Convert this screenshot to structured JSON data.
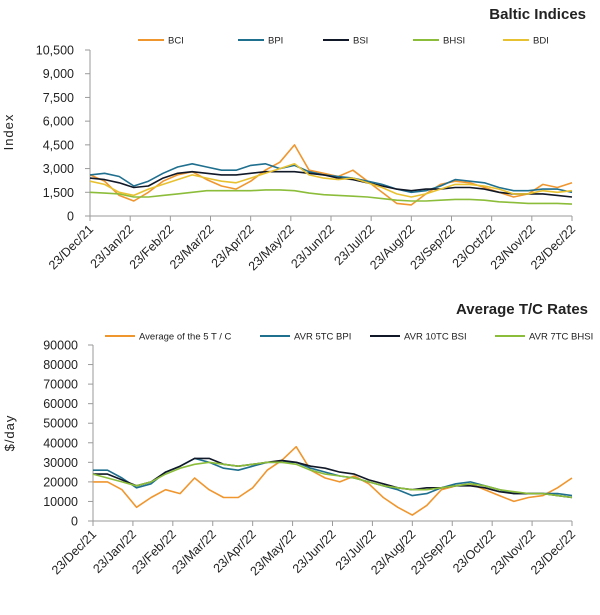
{
  "chart_data": [
    {
      "type": "line",
      "title": "Baltic Indices",
      "ylabel": "Index",
      "ylim": [
        0,
        10500
      ],
      "yticks": [
        "10,500",
        "9,000",
        "7,500",
        "6,000",
        "4,500",
        "3,000",
        "1,500",
        "0"
      ],
      "ytick_values": [
        10500,
        9000,
        7500,
        6000,
        4500,
        3000,
        1500,
        0
      ],
      "xticks": [
        "23/Dec/21",
        "23/Jan/22",
        "23/Feb/22",
        "23/Mar/22",
        "23/Apr/22",
        "23/May/22",
        "23/Jun/22",
        "23/Jul/22",
        "23/Aug/22",
        "23/Sep/22",
        "23/Oct/22",
        "23/Nov/22",
        "23/Dec/22"
      ],
      "legend_position": "top",
      "series": [
        {
          "name": "BCI",
          "color": "#f0962e",
          "values": [
            2600,
            2200,
            1300,
            950,
            1500,
            2200,
            2600,
            2800,
            2300,
            1900,
            1700,
            2200,
            2900,
            3400,
            4500,
            2900,
            2700,
            2500,
            2900,
            2200,
            1500,
            800,
            700,
            1400,
            2000,
            2200,
            2100,
            1800,
            1500,
            1200,
            1400,
            2000,
            1800,
            2100
          ]
        },
        {
          "name": "BPI",
          "color": "#1f6f8f",
          "values": [
            2600,
            2700,
            2500,
            1900,
            2200,
            2700,
            3100,
            3300,
            3100,
            2900,
            2900,
            3200,
            3300,
            3000,
            3200,
            2800,
            2600,
            2500,
            2400,
            2200,
            2000,
            1700,
            1500,
            1600,
            1900,
            2300,
            2200,
            2100,
            1800,
            1600,
            1600,
            1700,
            1700,
            1500
          ]
        },
        {
          "name": "BSI",
          "color": "#111827",
          "values": [
            2400,
            2300,
            2100,
            1800,
            1900,
            2400,
            2700,
            2800,
            2700,
            2600,
            2600,
            2700,
            2800,
            2800,
            2800,
            2700,
            2600,
            2400,
            2300,
            2100,
            1900,
            1700,
            1600,
            1700,
            1700,
            1800,
            1800,
            1700,
            1500,
            1400,
            1400,
            1400,
            1300,
            1200
          ]
        },
        {
          "name": "BHSI",
          "color": "#8cbd3a",
          "values": [
            1500,
            1450,
            1400,
            1200,
            1200,
            1300,
            1400,
            1500,
            1600,
            1600,
            1600,
            1600,
            1650,
            1650,
            1600,
            1450,
            1350,
            1300,
            1250,
            1200,
            1100,
            1000,
            950,
            950,
            1000,
            1050,
            1050,
            1000,
            900,
            850,
            800,
            800,
            800,
            750
          ]
        },
        {
          "name": "BDI",
          "color": "#e8c130",
          "values": [
            2200,
            2000,
            1500,
            1300,
            1700,
            2000,
            2300,
            2600,
            2400,
            2200,
            2100,
            2400,
            2700,
            3000,
            3300,
            2600,
            2400,
            2300,
            2400,
            2100,
            1800,
            1400,
            1200,
            1400,
            1700,
            2000,
            2000,
            1900,
            1700,
            1400,
            1400,
            1600,
            1500,
            1600
          ]
        }
      ]
    },
    {
      "type": "line",
      "title": "Average T/C Rates",
      "ylabel": "$/day",
      "ylim": [
        0,
        90000
      ],
      "yticks": [
        "90000",
        "80000",
        "70000",
        "60000",
        "50000",
        "40000",
        "30000",
        "20000",
        "10000",
        "0"
      ],
      "ytick_values": [
        90000,
        80000,
        70000,
        60000,
        50000,
        40000,
        30000,
        20000,
        10000,
        0
      ],
      "xticks": [
        "23/Dec/21",
        "23/Jan/22",
        "23/Feb/22",
        "23/Mar/22",
        "23/Apr/22",
        "23/May/22",
        "23/Jun/22",
        "23/Jul/22",
        "23/Aug/22",
        "23/Sep/22",
        "23/Oct/22",
        "23/Nov/22",
        "23/Dec/22"
      ],
      "legend_position": "top",
      "series": [
        {
          "name": "Average of the 5 T / C",
          "color": "#f0962e",
          "values": [
            20000,
            20000,
            16000,
            7000,
            12000,
            16000,
            14000,
            22000,
            16000,
            12000,
            12000,
            17000,
            26000,
            31000,
            38000,
            26000,
            22000,
            20000,
            23000,
            19000,
            12000,
            7000,
            3000,
            8000,
            16000,
            18000,
            19000,
            16000,
            13000,
            10000,
            12000,
            13000,
            17000,
            22000
          ]
        },
        {
          "name": "AVR 5TC BPI",
          "color": "#1f6f8f",
          "values": [
            26000,
            26000,
            22000,
            17000,
            19000,
            25000,
            28000,
            32000,
            30000,
            27000,
            26000,
            28000,
            30000,
            30000,
            30000,
            27000,
            25000,
            23000,
            22000,
            20000,
            18000,
            16000,
            13000,
            14000,
            17000,
            19000,
            20000,
            18000,
            16000,
            14000,
            14000,
            14000,
            14000,
            13000
          ]
        },
        {
          "name": "AVR 10TC BSI",
          "color": "#111827",
          "values": [
            24000,
            24000,
            21000,
            18000,
            20000,
            25000,
            28000,
            32000,
            32000,
            29000,
            28000,
            29000,
            30000,
            31000,
            30000,
            28000,
            27000,
            25000,
            24000,
            21000,
            19000,
            17000,
            16000,
            17000,
            17000,
            18000,
            18000,
            17000,
            15000,
            14000,
            14000,
            14000,
            13000,
            12000
          ]
        },
        {
          "name": "AVR 7TC BHSI",
          "color": "#8cbd3a",
          "values": [
            24000,
            22000,
            20000,
            18000,
            20000,
            24000,
            27000,
            29000,
            30000,
            29000,
            28000,
            29000,
            30000,
            30000,
            29000,
            26000,
            24000,
            23000,
            22000,
            20000,
            18000,
            17000,
            16000,
            16000,
            17000,
            18000,
            19000,
            18000,
            16000,
            15000,
            14000,
            14000,
            13000,
            12000
          ]
        }
      ]
    }
  ]
}
